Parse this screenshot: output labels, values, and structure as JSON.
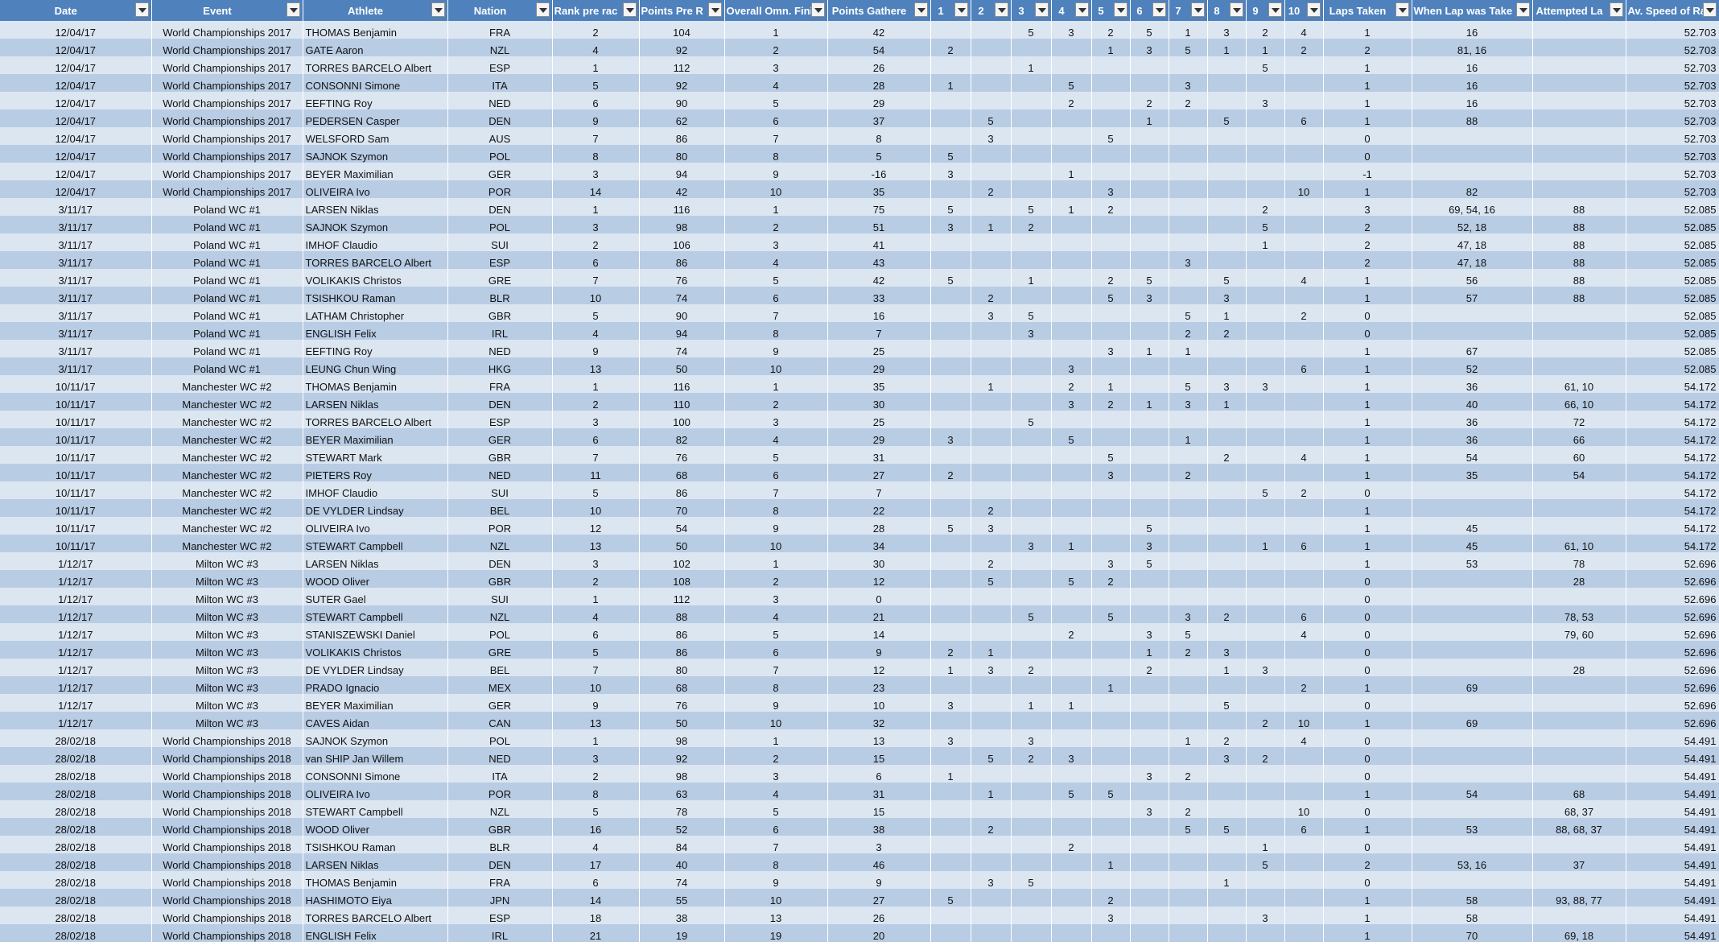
{
  "columns": [
    "Date",
    "Event",
    "Athlete",
    "Nation",
    "Rank pre rac",
    "Points Pre R",
    "Overall Omn. Fini",
    "Points Gathere",
    "1",
    "2",
    "3",
    "4",
    "5",
    "6",
    "7",
    "8",
    "9",
    "10",
    "Laps Taken",
    "When Lap was Take",
    "Attempted La",
    "Av. Speed of Ra"
  ],
  "rows": [
    [
      "12/04/17",
      "World Championships 2017",
      "THOMAS Benjamin",
      "FRA",
      "2",
      "104",
      "1",
      "42",
      "",
      "",
      "5",
      "3",
      "2",
      "5",
      "1",
      "3",
      "2",
      "4",
      "1",
      "16",
      "",
      "52.703"
    ],
    [
      "12/04/17",
      "World Championships 2017",
      "GATE Aaron",
      "NZL",
      "4",
      "92",
      "2",
      "54",
      "2",
      "",
      "",
      "",
      "1",
      "3",
      "5",
      "1",
      "1",
      "2",
      "2",
      "81, 16",
      "",
      "52.703"
    ],
    [
      "12/04/17",
      "World Championships 2017",
      "TORRES BARCELO Albert",
      "ESP",
      "1",
      "112",
      "3",
      "26",
      "",
      "",
      "1",
      "",
      "",
      "",
      "",
      "",
      "5",
      "",
      "1",
      "16",
      "",
      "52.703"
    ],
    [
      "12/04/17",
      "World Championships 2017",
      "CONSONNI Simone",
      "ITA",
      "5",
      "92",
      "4",
      "28",
      "1",
      "",
      "",
      "5",
      "",
      "",
      "3",
      "",
      "",
      "",
      "1",
      "16",
      "",
      "52.703"
    ],
    [
      "12/04/17",
      "World Championships 2017",
      "EEFTING Roy",
      "NED",
      "6",
      "90",
      "5",
      "29",
      "",
      "",
      "",
      "2",
      "",
      "2",
      "2",
      "",
      "3",
      "",
      "1",
      "16",
      "",
      "52.703"
    ],
    [
      "12/04/17",
      "World Championships 2017",
      "PEDERSEN Casper",
      "DEN",
      "9",
      "62",
      "6",
      "37",
      "",
      "5",
      "",
      "",
      "",
      "1",
      "",
      "5",
      "",
      "6",
      "1",
      "88",
      "",
      "52.703"
    ],
    [
      "12/04/17",
      "World Championships 2017",
      "WELSFORD Sam",
      "AUS",
      "7",
      "86",
      "7",
      "8",
      "",
      "3",
      "",
      "",
      "5",
      "",
      "",
      "",
      "",
      "",
      "0",
      "",
      "",
      "52.703"
    ],
    [
      "12/04/17",
      "World Championships 2017",
      "SAJNOK Szymon",
      "POL",
      "8",
      "80",
      "8",
      "5",
      "5",
      "",
      "",
      "",
      "",
      "",
      "",
      "",
      "",
      "",
      "0",
      "",
      "",
      "52.703"
    ],
    [
      "12/04/17",
      "World Championships 2017",
      "BEYER Maximilian",
      "GER",
      "3",
      "94",
      "9",
      "-16",
      "3",
      "",
      "",
      "1",
      "",
      "",
      "",
      "",
      "",
      "",
      "-1",
      "",
      "",
      "52.703"
    ],
    [
      "12/04/17",
      "World Championships 2017",
      "OLIVEIRA Ivo",
      "POR",
      "14",
      "42",
      "10",
      "35",
      "",
      "2",
      "",
      "",
      "3",
      "",
      "",
      "",
      "",
      "10",
      "1",
      "82",
      "",
      "52.703"
    ],
    [
      "3/11/17",
      "Poland WC #1",
      "LARSEN Niklas",
      "DEN",
      "1",
      "116",
      "1",
      "75",
      "5",
      "",
      "5",
      "1",
      "2",
      "",
      "",
      "",
      "2",
      "",
      "3",
      "69, 54, 16",
      "88",
      "52.085"
    ],
    [
      "3/11/17",
      "Poland WC #1",
      "SAJNOK Szymon",
      "POL",
      "3",
      "98",
      "2",
      "51",
      "3",
      "1",
      "2",
      "",
      "",
      "",
      "",
      "",
      "5",
      "",
      "2",
      "52, 18",
      "88",
      "52.085"
    ],
    [
      "3/11/17",
      "Poland WC #1",
      "IMHOF Claudio",
      "SUI",
      "2",
      "106",
      "3",
      "41",
      "",
      "",
      "",
      "",
      "",
      "",
      "",
      "",
      "1",
      "",
      "2",
      "47, 18",
      "88",
      "52.085"
    ],
    [
      "3/11/17",
      "Poland WC #1",
      "TORRES BARCELO Albert",
      "ESP",
      "6",
      "86",
      "4",
      "43",
      "",
      "",
      "",
      "",
      "",
      "",
      "3",
      "",
      "",
      "",
      "2",
      "47, 18",
      "88",
      "52.085"
    ],
    [
      "3/11/17",
      "Poland WC #1",
      "VOLIKAKIS Christos",
      "GRE",
      "7",
      "76",
      "5",
      "42",
      "5",
      "",
      "1",
      "",
      "2",
      "5",
      "",
      "5",
      "",
      "4",
      "1",
      "56",
      "88",
      "52.085"
    ],
    [
      "3/11/17",
      "Poland WC #1",
      "TSISHKOU Raman",
      "BLR",
      "10",
      "74",
      "6",
      "33",
      "",
      "2",
      "",
      "",
      "5",
      "3",
      "",
      "3",
      "",
      "",
      "1",
      "57",
      "88",
      "52.085"
    ],
    [
      "3/11/17",
      "Poland WC #1",
      "LATHAM Christopher",
      "GBR",
      "5",
      "90",
      "7",
      "16",
      "",
      "3",
      "5",
      "",
      "",
      "",
      "5",
      "1",
      "",
      "2",
      "0",
      "",
      "",
      "52.085"
    ],
    [
      "3/11/17",
      "Poland WC #1",
      "ENGLISH Felix",
      "IRL",
      "4",
      "94",
      "8",
      "7",
      "",
      "",
      "3",
      "",
      "",
      "",
      "2",
      "2",
      "",
      "",
      "0",
      "",
      "",
      "52.085"
    ],
    [
      "3/11/17",
      "Poland WC #1",
      "EEFTING Roy",
      "NED",
      "9",
      "74",
      "9",
      "25",
      "",
      "",
      "",
      "",
      "3",
      "1",
      "1",
      "",
      "",
      "",
      "1",
      "67",
      "",
      "52.085"
    ],
    [
      "3/11/17",
      "Poland WC #1",
      "LEUNG Chun Wing",
      "HKG",
      "13",
      "50",
      "10",
      "29",
      "",
      "",
      "",
      "3",
      "",
      "",
      "",
      "",
      "",
      "6",
      "1",
      "52",
      "",
      "52.085"
    ],
    [
      "10/11/17",
      "Manchester WC #2",
      "THOMAS Benjamin",
      "FRA",
      "1",
      "116",
      "1",
      "35",
      "",
      "1",
      "",
      "2",
      "1",
      "",
      "5",
      "3",
      "3",
      "",
      "1",
      "36",
      "61, 10",
      "54.172"
    ],
    [
      "10/11/17",
      "Manchester WC #2",
      "LARSEN Niklas",
      "DEN",
      "2",
      "110",
      "2",
      "30",
      "",
      "",
      "",
      "3",
      "2",
      "1",
      "3",
      "1",
      "",
      "",
      "1",
      "40",
      "66, 10",
      "54.172"
    ],
    [
      "10/11/17",
      "Manchester WC #2",
      "TORRES BARCELO Albert",
      "ESP",
      "3",
      "100",
      "3",
      "25",
      "",
      "",
      "5",
      "",
      "",
      "",
      "",
      "",
      "",
      "",
      "1",
      "36",
      "72",
      "54.172"
    ],
    [
      "10/11/17",
      "Manchester WC #2",
      "BEYER Maximilian",
      "GER",
      "6",
      "82",
      "4",
      "29",
      "3",
      "",
      "",
      "5",
      "",
      "",
      "1",
      "",
      "",
      "",
      "1",
      "36",
      "66",
      "54.172"
    ],
    [
      "10/11/17",
      "Manchester WC #2",
      "STEWART Mark",
      "GBR",
      "7",
      "76",
      "5",
      "31",
      "",
      "",
      "",
      "",
      "5",
      "",
      "",
      "2",
      "",
      "4",
      "1",
      "54",
      "60",
      "54.172"
    ],
    [
      "10/11/17",
      "Manchester WC #2",
      "PIETERS Roy",
      "NED",
      "11",
      "68",
      "6",
      "27",
      "2",
      "",
      "",
      "",
      "3",
      "",
      "2",
      "",
      "",
      "",
      "1",
      "35",
      "54",
      "54.172"
    ],
    [
      "10/11/17",
      "Manchester WC #2",
      "IMHOF Claudio",
      "SUI",
      "5",
      "86",
      "7",
      "7",
      "",
      "",
      "",
      "",
      "",
      "",
      "",
      "",
      "5",
      "2",
      "0",
      "",
      "",
      "54.172"
    ],
    [
      "10/11/17",
      "Manchester WC #2",
      "DE VYLDER Lindsay",
      "BEL",
      "10",
      "70",
      "8",
      "22",
      "",
      "2",
      "",
      "",
      "",
      "",
      "",
      "",
      "",
      "",
      "1",
      "",
      "",
      "54.172"
    ],
    [
      "10/11/17",
      "Manchester WC #2",
      "OLIVEIRA Ivo",
      "POR",
      "12",
      "54",
      "9",
      "28",
      "5",
      "3",
      "",
      "",
      "",
      "5",
      "",
      "",
      "",
      "",
      "1",
      "45",
      "",
      "54.172"
    ],
    [
      "10/11/17",
      "Manchester WC #2",
      "STEWART Campbell",
      "NZL",
      "13",
      "50",
      "10",
      "34",
      "",
      "",
      "3",
      "1",
      "",
      "3",
      "",
      "",
      "1",
      "6",
      "1",
      "45",
      "61, 10",
      "54.172"
    ],
    [
      "1/12/17",
      "Milton WC #3",
      "LARSEN Niklas",
      "DEN",
      "3",
      "102",
      "1",
      "30",
      "",
      "2",
      "",
      "",
      "3",
      "5",
      "",
      "",
      "",
      "",
      "1",
      "53",
      "78",
      "52.696"
    ],
    [
      "1/12/17",
      "Milton WC #3",
      "WOOD Oliver",
      "GBR",
      "2",
      "108",
      "2",
      "12",
      "",
      "5",
      "",
      "5",
      "2",
      "",
      "",
      "",
      "",
      "",
      "0",
      "",
      "28",
      "52.696"
    ],
    [
      "1/12/17",
      "Milton WC #3",
      "SUTER Gael",
      "SUI",
      "1",
      "112",
      "3",
      "0",
      "",
      "",
      "",
      "",
      "",
      "",
      "",
      "",
      "",
      "",
      "0",
      "",
      "",
      "52.696"
    ],
    [
      "1/12/17",
      "Milton WC #3",
      "STEWART Campbell",
      "NZL",
      "4",
      "88",
      "4",
      "21",
      "",
      "",
      "5",
      "",
      "5",
      "",
      "3",
      "2",
      "",
      "6",
      "0",
      "",
      "78, 53",
      "52.696"
    ],
    [
      "1/12/17",
      "Milton WC #3",
      "STANISZEWSKI Daniel",
      "POL",
      "6",
      "86",
      "5",
      "14",
      "",
      "",
      "",
      "2",
      "",
      "3",
      "5",
      "",
      "",
      "4",
      "0",
      "",
      "79, 60",
      "52.696"
    ],
    [
      "1/12/17",
      "Milton WC #3",
      "VOLIKAKIS Christos",
      "GRE",
      "5",
      "86",
      "6",
      "9",
      "2",
      "1",
      "",
      "",
      "",
      "1",
      "2",
      "3",
      "",
      "",
      "0",
      "",
      "",
      "52.696"
    ],
    [
      "1/12/17",
      "Milton WC #3",
      "DE VYLDER Lindsay",
      "BEL",
      "7",
      "80",
      "7",
      "12",
      "1",
      "3",
      "2",
      "",
      "",
      "2",
      "",
      "1",
      "3",
      "",
      "0",
      "",
      "28",
      "52.696"
    ],
    [
      "1/12/17",
      "Milton WC #3",
      "PRADO Ignacio",
      "MEX",
      "10",
      "68",
      "8",
      "23",
      "",
      "",
      "",
      "",
      "1",
      "",
      "",
      "",
      "",
      "2",
      "1",
      "69",
      "",
      "52.696"
    ],
    [
      "1/12/17",
      "Milton WC #3",
      "BEYER Maximilian",
      "GER",
      "9",
      "76",
      "9",
      "10",
      "3",
      "",
      "1",
      "1",
      "",
      "",
      "",
      "5",
      "",
      "",
      "0",
      "",
      "",
      "52.696"
    ],
    [
      "1/12/17",
      "Milton WC #3",
      "CAVES Aidan",
      "CAN",
      "13",
      "50",
      "10",
      "32",
      "",
      "",
      "",
      "",
      "",
      "",
      "",
      "",
      "2",
      "10",
      "1",
      "69",
      "",
      "52.696"
    ],
    [
      "28/02/18",
      "World Championships 2018",
      "SAJNOK Szymon",
      "POL",
      "1",
      "98",
      "1",
      "13",
      "3",
      "",
      "3",
      "",
      "",
      "",
      "1",
      "2",
      "",
      "4",
      "0",
      "",
      "",
      "54.491"
    ],
    [
      "28/02/18",
      "World Championships 2018",
      "van SHIP Jan Willem",
      "NED",
      "3",
      "92",
      "2",
      "15",
      "",
      "5",
      "2",
      "3",
      "",
      "",
      "",
      "3",
      "2",
      "",
      "0",
      "",
      "",
      "54.491"
    ],
    [
      "28/02/18",
      "World Championships 2018",
      "CONSONNI Simone",
      "ITA",
      "2",
      "98",
      "3",
      "6",
      "1",
      "",
      "",
      "",
      "",
      "3",
      "2",
      "",
      "",
      "",
      "0",
      "",
      "",
      "54.491"
    ],
    [
      "28/02/18",
      "World Championships 2018",
      "OLIVEIRA Ivo",
      "POR",
      "8",
      "63",
      "4",
      "31",
      "",
      "1",
      "",
      "5",
      "5",
      "",
      "",
      "",
      "",
      "",
      "1",
      "54",
      "68",
      "54.491"
    ],
    [
      "28/02/18",
      "World Championships 2018",
      "STEWART Campbell",
      "NZL",
      "5",
      "78",
      "5",
      "15",
      "",
      "",
      "",
      "",
      "",
      "3",
      "2",
      "",
      "",
      "10",
      "0",
      "",
      "68, 37",
      "54.491"
    ],
    [
      "28/02/18",
      "World Championships 2018",
      "WOOD Oliver",
      "GBR",
      "16",
      "52",
      "6",
      "38",
      "",
      "2",
      "",
      "",
      "",
      "",
      "5",
      "5",
      "",
      "6",
      "1",
      "53",
      "88, 68, 37",
      "54.491"
    ],
    [
      "28/02/18",
      "World Championships 2018",
      "TSISHKOU Raman",
      "BLR",
      "4",
      "84",
      "7",
      "3",
      "",
      "",
      "",
      "2",
      "",
      "",
      "",
      "",
      "1",
      "",
      "0",
      "",
      "",
      "54.491"
    ],
    [
      "28/02/18",
      "World Championships 2018",
      "LARSEN Niklas",
      "DEN",
      "17",
      "40",
      "8",
      "46",
      "",
      "",
      "",
      "",
      "1",
      "",
      "",
      "",
      "5",
      "",
      "2",
      "53, 16",
      "37",
      "54.491"
    ],
    [
      "28/02/18",
      "World Championships 2018",
      "THOMAS Benjamin",
      "FRA",
      "6",
      "74",
      "9",
      "9",
      "",
      "3",
      "5",
      "",
      "",
      "",
      "",
      "1",
      "",
      "",
      "0",
      "",
      "",
      "54.491"
    ],
    [
      "28/02/18",
      "World Championships 2018",
      "HASHIMOTO Eiya",
      "JPN",
      "14",
      "55",
      "10",
      "27",
      "5",
      "",
      "",
      "",
      "2",
      "",
      "",
      "",
      "",
      "",
      "1",
      "58",
      "93, 88, 77",
      "54.491"
    ],
    [
      "28/02/18",
      "World Championships 2018",
      "TORRES BARCELO Albert",
      "ESP",
      "18",
      "38",
      "13",
      "26",
      "",
      "",
      "",
      "",
      "3",
      "",
      "",
      "",
      "3",
      "",
      "1",
      "58",
      "",
      "54.491"
    ],
    [
      "28/02/18",
      "World Championships 2018",
      "ENGLISH Felix",
      "IRL",
      "21",
      "19",
      "19",
      "20",
      "",
      "",
      "",
      "",
      "",
      "",
      "",
      "",
      "",
      "",
      "1",
      "70",
      "69, 18",
      "54.491"
    ]
  ]
}
